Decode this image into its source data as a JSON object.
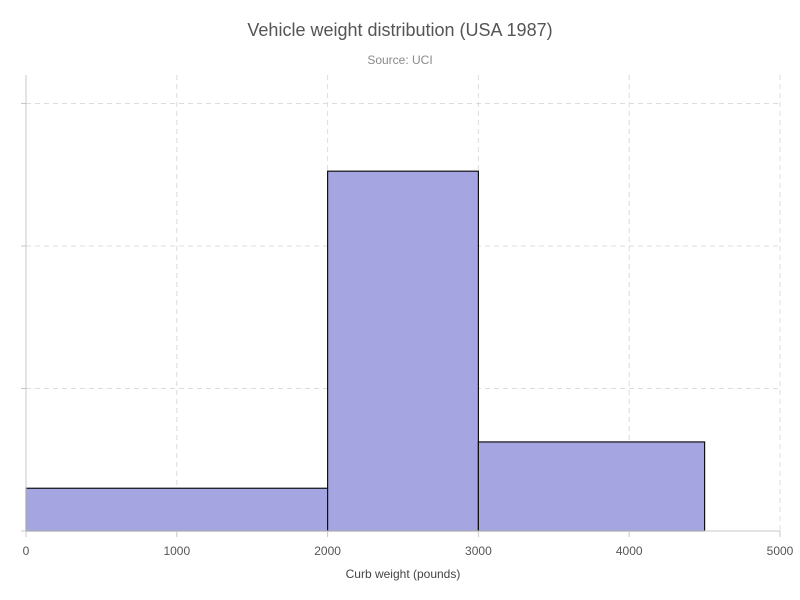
{
  "chart_data": {
    "type": "bar",
    "title": "Vehicle weight distribution (USA 1987)",
    "subtitle": "Source: UCI",
    "xlabel": "Curb weight (pounds)",
    "ylabel": "",
    "xlim": [
      0,
      5000
    ],
    "ylim": [
      0,
      128
    ],
    "x_ticks": [
      0,
      1000,
      2000,
      3000,
      4000,
      5000
    ],
    "y_ticks": [
      0,
      40,
      80,
      120
    ],
    "show_y_tick_labels": false,
    "grid": true,
    "bar_color": "#a5a5e1",
    "bar_edge_color": "#111111",
    "bins": [
      {
        "start": 0,
        "end": 2000,
        "value": 12
      },
      {
        "start": 2000,
        "end": 3000,
        "value": 101
      },
      {
        "start": 3000,
        "end": 4500,
        "value": 25
      }
    ]
  }
}
